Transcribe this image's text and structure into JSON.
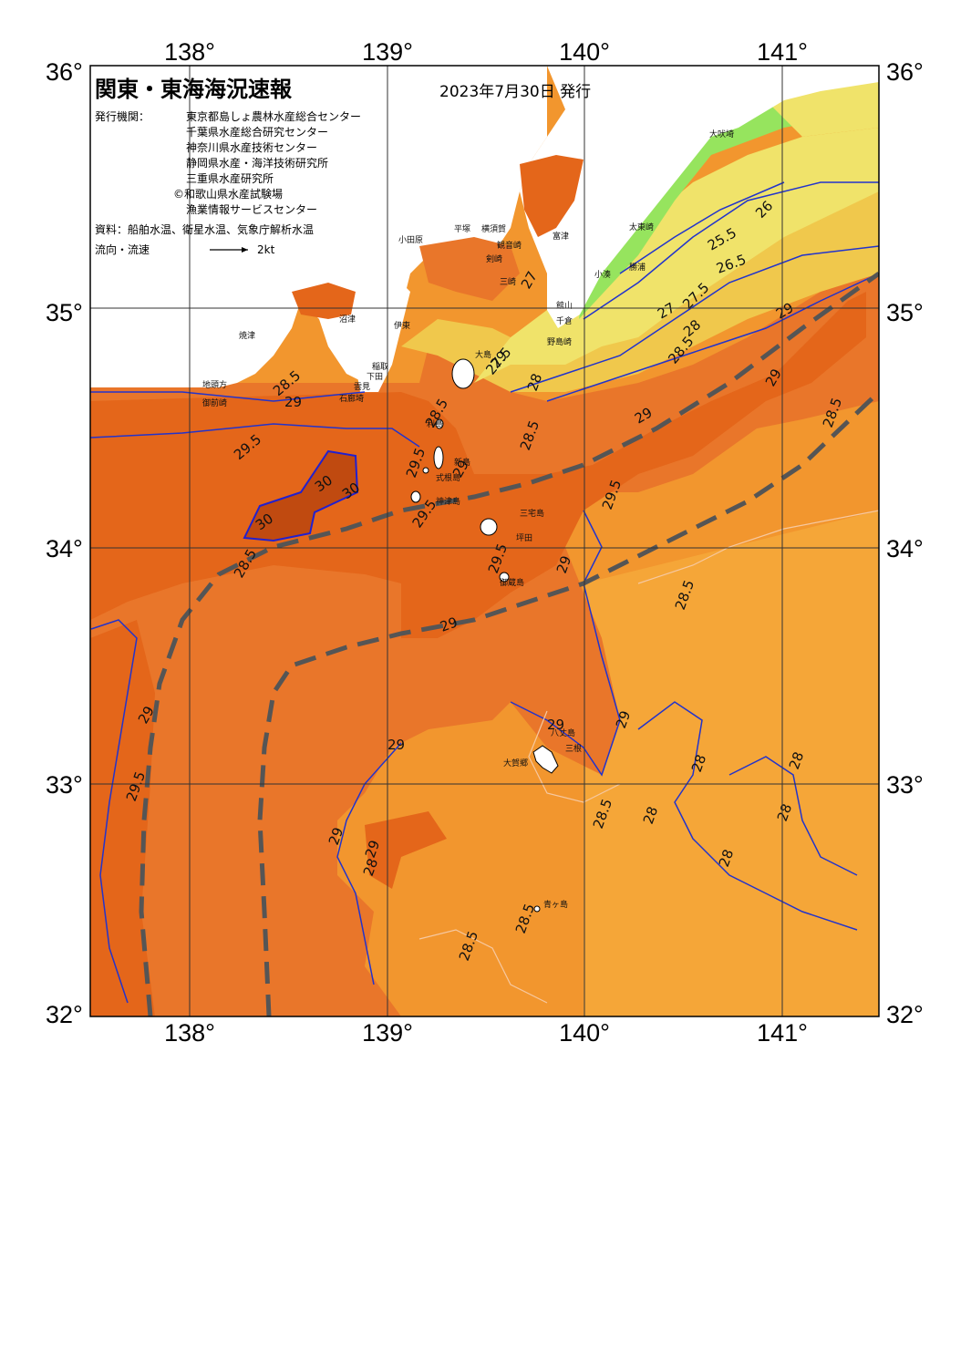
{
  "title": "関東・東海海況速報",
  "date": "2023年7月30日 発行",
  "publisher_label": "発行機関：",
  "publishers": [
    "東京都島しょ農林水産総合センター",
    "千葉県水産総合研究センター",
    "神奈川県水産技術センター",
    "静岡県水産・海洋技術研究所",
    "三重県水産研究所",
    "©和歌山県水産試験場",
    "漁業情報サービスセンター"
  ],
  "sources": "資料：船舶水温、衛星水温、気象庁解析水温",
  "flow_label": "流向・流速",
  "flow_scale": "2kt",
  "lon_ticks": [
    "138°",
    "139°",
    "140°",
    "141°"
  ],
  "lat_ticks": [
    "36°",
    "35°",
    "34°",
    "33°",
    "32°"
  ],
  "contour_labels": [
    "29.5",
    "30",
    "30",
    "30",
    "29",
    "28.5",
    "29",
    "29.5",
    "29.5",
    "29.5",
    "29.5",
    "29",
    "28.5",
    "28.5",
    "29",
    "29",
    "28.5",
    "29",
    "29",
    "29",
    "29",
    "29",
    "29",
    "28",
    "28.5",
    "28",
    "28",
    "28",
    "28.5",
    "28.5",
    "28.5",
    "27.5",
    "28",
    "27",
    "27.5",
    "28.5",
    "28",
    "26",
    "25.5",
    "26.5",
    "27",
    "29",
    "29",
    "29",
    "28",
    "28.5",
    "29.5",
    "28"
  ],
  "place_names": [
    "大吠埼",
    "太東崎",
    "勝浦",
    "小湊",
    "館山",
    "千倉",
    "野島崎",
    "富津",
    "観音崎",
    "剣崎",
    "三崎",
    "平塚",
    "横須賀",
    "小田原",
    "伊東",
    "稲取",
    "下田",
    "石廊埼",
    "雲見",
    "沼津",
    "焼津",
    "御前崎",
    "地頭方",
    "大島",
    "利島",
    "新島",
    "式根島",
    "神津島",
    "三宅島",
    "坪田",
    "御蔵島",
    "八丈島",
    "三根",
    "大賀郷",
    "青ヶ島"
  ],
  "colors": {
    "land": "#ffffff",
    "sea_28": "#f0a030",
    "sea_28_5": "#f29030",
    "sea_29": "#e8782a",
    "sea_29_5": "#e06818",
    "sea_30": "#c04a10",
    "coastal_cool": "#f0c040",
    "coastal_yellow": "#f0e060",
    "coastal_green": "#90e060",
    "isotherm": "#2020d0",
    "kuroshio_axis": "#555555"
  }
}
